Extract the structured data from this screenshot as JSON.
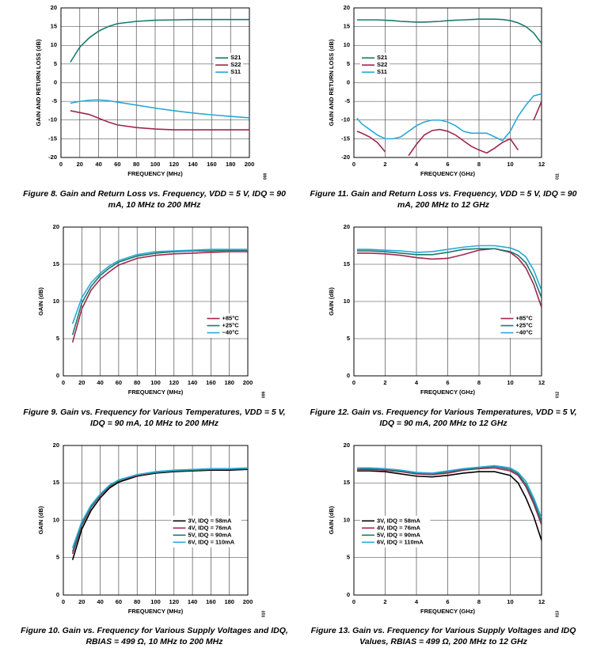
{
  "chart_data": [
    {
      "type": "line",
      "title": "Figure 8. Gain and Return Loss vs. Frequency, VDD = 5 V, IDQ = 90 mA, 10 MHz to 200 MHz",
      "code": "008",
      "x_label": "FREQUENCY (MHz)",
      "y_label": "GAIN AND RETURN LOSS (dB)",
      "x": [
        10,
        20,
        30,
        40,
        50,
        60,
        80,
        100,
        120,
        140,
        160,
        180,
        200
      ],
      "xlim": [
        0,
        200
      ],
      "ylim": [
        -20,
        20
      ],
      "xticks": [
        0,
        20,
        40,
        60,
        80,
        100,
        120,
        140,
        160,
        180,
        200
      ],
      "yticks": [
        -20,
        -15,
        -10,
        -5,
        0,
        5,
        10,
        15,
        20
      ],
      "grid": true,
      "legend": "upper right",
      "series": [
        {
          "name": "S21",
          "color": "#1a7a6e",
          "values": [
            5.5,
            9.5,
            12,
            13.8,
            15,
            15.8,
            16.4,
            16.7,
            16.8,
            16.9,
            16.9,
            16.9,
            16.9
          ]
        },
        {
          "name": "S22",
          "color": "#a0264f",
          "values": [
            -7.5,
            -8,
            -8.5,
            -9.5,
            -10.5,
            -11.3,
            -12,
            -12.4,
            -12.6,
            -12.6,
            -12.6,
            -12.6,
            -12.6
          ]
        },
        {
          "name": "S11",
          "color": "#2aa8d8",
          "values": [
            -5.5,
            -5,
            -4.7,
            -4.6,
            -4.8,
            -5.2,
            -6,
            -6.8,
            -7.5,
            -8.1,
            -8.6,
            -9,
            -9.4
          ]
        }
      ]
    },
    {
      "type": "line",
      "title": "Figure 11. Gain and Return Loss vs. Frequency, VDD = 5 V, IDQ = 90 mA, 200 MHz to 12 GHz",
      "code": "011",
      "x_label": "FREQUENCY (GHz)",
      "y_label": "GAIN AND RETURN LOSS (dB)",
      "x": [
        0.2,
        0.5,
        1,
        1.5,
        2,
        2.5,
        3,
        3.5,
        4,
        4.5,
        5,
        5.5,
        6,
        6.5,
        7,
        7.5,
        8,
        8.5,
        9,
        9.5,
        10,
        10.5,
        11,
        11.5,
        12
      ],
      "xlim": [
        0,
        12
      ],
      "ylim": [
        -20,
        20
      ],
      "xticks": [
        0,
        2,
        4,
        6,
        8,
        10,
        12
      ],
      "yticks": [
        -20,
        -15,
        -10,
        -5,
        0,
        5,
        10,
        15,
        20
      ],
      "grid": true,
      "legend": "upper left",
      "series": [
        {
          "name": "S21",
          "color": "#1a7a6e",
          "values": [
            16.8,
            16.8,
            16.8,
            16.8,
            16.7,
            16.6,
            16.4,
            16.3,
            16.2,
            16.2,
            16.3,
            16.4,
            16.6,
            16.7,
            16.8,
            16.9,
            17,
            17,
            17,
            16.9,
            16.6,
            16,
            15,
            13.3,
            10.5
          ]
        },
        {
          "name": "S22",
          "color": "#a0264f",
          "values": [
            -13,
            -13.5,
            -14.5,
            -16,
            -18.5,
            null,
            null,
            -19.5,
            -16.5,
            -14,
            -12.8,
            -12.5,
            -13,
            -14,
            -15.5,
            -17,
            -18,
            -18.8,
            -17.5,
            -16,
            -15,
            -18,
            null,
            -10,
            -5
          ]
        },
        {
          "name": "S11",
          "color": "#2aa8d8",
          "values": [
            -9.5,
            -11,
            -12.5,
            -14,
            -15,
            -15,
            -14.5,
            -13,
            -11.5,
            -10.5,
            -10,
            -10,
            -10.5,
            -11.5,
            -13,
            -13.5,
            -13.5,
            -13.5,
            -14.5,
            -15.5,
            -13,
            -9,
            -6,
            -3.5,
            -3
          ]
        }
      ]
    },
    {
      "type": "line",
      "title": "Figure 9. Gain vs. Frequency for Various Temperatures, VDD = 5 V, IDQ = 90 mA, 10 MHz to 200 MHz",
      "code": "009",
      "x_label": "FREQUENCY (MHz)",
      "y_label": "GAIN (dB)",
      "x": [
        10,
        20,
        30,
        40,
        50,
        60,
        80,
        100,
        120,
        140,
        160,
        180,
        200
      ],
      "xlim": [
        0,
        200
      ],
      "ylim": [
        0,
        20
      ],
      "xticks": [
        0,
        20,
        40,
        60,
        80,
        100,
        120,
        140,
        160,
        180,
        200
      ],
      "yticks": [
        0,
        5,
        10,
        15,
        20
      ],
      "grid": true,
      "legend": "lower right",
      "series": [
        {
          "name": "+85°C",
          "color": "#a0264f",
          "values": [
            4.5,
            9,
            11.5,
            13,
            14,
            14.9,
            15.8,
            16.2,
            16.4,
            16.5,
            16.6,
            16.7,
            16.7
          ]
        },
        {
          "name": "+25°C",
          "color": "#1a7a6e",
          "values": [
            5.5,
            9.8,
            12,
            13.5,
            14.5,
            15.3,
            16.1,
            16.5,
            16.7,
            16.8,
            16.8,
            16.9,
            16.9
          ]
        },
        {
          "name": "−40°C",
          "color": "#2aa8d8",
          "values": [
            7,
            10.5,
            12.5,
            13.8,
            14.8,
            15.5,
            16.3,
            16.7,
            16.8,
            16.9,
            17,
            17,
            17
          ]
        }
      ]
    },
    {
      "type": "line",
      "title": "Figure 12. Gain vs. Frequency for Various Temperatures, VDD = 5 V, IDQ = 90 mA, 200 MHz to 12 GHz",
      "code": "012",
      "x_label": "FREQUENCY (GHz)",
      "y_label": "GAIN (dB)",
      "x": [
        0.2,
        1,
        2,
        3,
        4,
        5,
        6,
        7,
        8,
        9,
        10,
        10.5,
        11,
        11.5,
        12
      ],
      "xlim": [
        0,
        12
      ],
      "ylim": [
        0,
        20
      ],
      "xticks": [
        0,
        2,
        4,
        6,
        8,
        10,
        12
      ],
      "yticks": [
        0,
        5,
        10,
        15,
        20
      ],
      "grid": true,
      "legend": "lower right",
      "series": [
        {
          "name": "+85°C",
          "color": "#a0264f",
          "values": [
            16.5,
            16.5,
            16.4,
            16.2,
            15.9,
            15.7,
            15.8,
            16.3,
            16.9,
            17.1,
            16.6,
            15.8,
            14.5,
            12.3,
            9.2
          ]
        },
        {
          "name": "+25°C",
          "color": "#1a7a6e",
          "values": [
            16.8,
            16.8,
            16.7,
            16.5,
            16.3,
            16.3,
            16.6,
            17,
            17.1,
            17.1,
            16.7,
            16.2,
            15.2,
            13.2,
            10.5
          ]
        },
        {
          "name": "−40°C",
          "color": "#2aa8d8",
          "values": [
            17,
            17,
            16.9,
            16.8,
            16.6,
            16.7,
            17,
            17.3,
            17.5,
            17.5,
            17.2,
            16.8,
            16,
            14.2,
            11.5
          ]
        }
      ]
    },
    {
      "type": "line",
      "title": "Figure 10. Gain vs. Frequency for Various Supply Voltages and IDQ, RBIAS = 499 Ω, 10 MHz to 200 MHz",
      "code": "010",
      "x_label": "FREQUENCY (MHz)",
      "y_label": "GAIN (dB)",
      "x": [
        10,
        20,
        30,
        40,
        50,
        60,
        80,
        100,
        120,
        140,
        160,
        180,
        200
      ],
      "xlim": [
        0,
        200
      ],
      "ylim": [
        0,
        20
      ],
      "xticks": [
        0,
        20,
        40,
        60,
        80,
        100,
        120,
        140,
        160,
        180,
        200
      ],
      "yticks": [
        0,
        5,
        10,
        15,
        20
      ],
      "grid": true,
      "legend": "center right",
      "series": [
        {
          "name": "3V, IDQ = 58mA",
          "color": "#000000",
          "values": [
            4.7,
            8.8,
            11.3,
            13,
            14.3,
            15.1,
            15.9,
            16.3,
            16.5,
            16.6,
            16.7,
            16.7,
            16.8
          ]
        },
        {
          "name": "4V, IDQ = 76mA",
          "color": "#a0264f",
          "values": [
            5.5,
            9.3,
            11.7,
            13.3,
            14.5,
            15.3,
            16,
            16.4,
            16.6,
            16.7,
            16.8,
            16.8,
            16.9
          ]
        },
        {
          "name": "5V, IDQ = 90mA",
          "color": "#1a7a6e",
          "values": [
            5.8,
            9.5,
            11.8,
            13.4,
            14.6,
            15.3,
            16.1,
            16.4,
            16.6,
            16.7,
            16.8,
            16.9,
            16.9
          ]
        },
        {
          "name": "6V, IDQ = 110mA",
          "color": "#2aa8d8",
          "values": [
            6.3,
            9.8,
            12,
            13.5,
            14.7,
            15.4,
            16.1,
            16.5,
            16.7,
            16.8,
            16.9,
            16.9,
            17
          ]
        }
      ]
    },
    {
      "type": "line",
      "title": "Figure 13. Gain vs. Frequency for Various Supply Voltages and IDQ Values, RBIAS = 499 Ω, 200 MHz to 12 GHz",
      "code": "013",
      "x_label": "FREQUENCY (GHz)",
      "y_label": "GAIN (dB)",
      "x": [
        0.2,
        1,
        2,
        3,
        4,
        5,
        6,
        7,
        8,
        9,
        10,
        10.5,
        11,
        11.5,
        12
      ],
      "xlim": [
        0,
        12
      ],
      "ylim": [
        0,
        20
      ],
      "xticks": [
        0,
        2,
        4,
        6,
        8,
        10,
        12
      ],
      "yticks": [
        0,
        5,
        10,
        15,
        20
      ],
      "grid": true,
      "legend": "center left",
      "series": [
        {
          "name": "3V, IDQ = 58mA",
          "color": "#000000",
          "values": [
            16.6,
            16.6,
            16.5,
            16.2,
            15.9,
            15.8,
            16,
            16.3,
            16.5,
            16.5,
            16,
            15,
            13,
            10.5,
            7.3
          ]
        },
        {
          "name": "4V, IDQ = 76mA",
          "color": "#a0264f",
          "values": [
            16.8,
            16.8,
            16.7,
            16.5,
            16.2,
            16.1,
            16.3,
            16.7,
            16.9,
            17,
            16.6,
            16,
            14.5,
            12.2,
            9.4
          ]
        },
        {
          "name": "5V, IDQ = 90mA",
          "color": "#1a7a6e",
          "values": [
            17,
            16.9,
            16.8,
            16.6,
            16.3,
            16.2,
            16.5,
            16.8,
            17,
            17.2,
            16.8,
            16.2,
            14.8,
            12.6,
            9.8
          ]
        },
        {
          "name": "6V, IDQ = 110mA",
          "color": "#2aa8d8",
          "values": [
            17,
            17,
            16.9,
            16.7,
            16.4,
            16.3,
            16.6,
            16.9,
            17.1,
            17.3,
            17,
            16.4,
            15.2,
            13,
            10.3
          ]
        }
      ]
    }
  ]
}
